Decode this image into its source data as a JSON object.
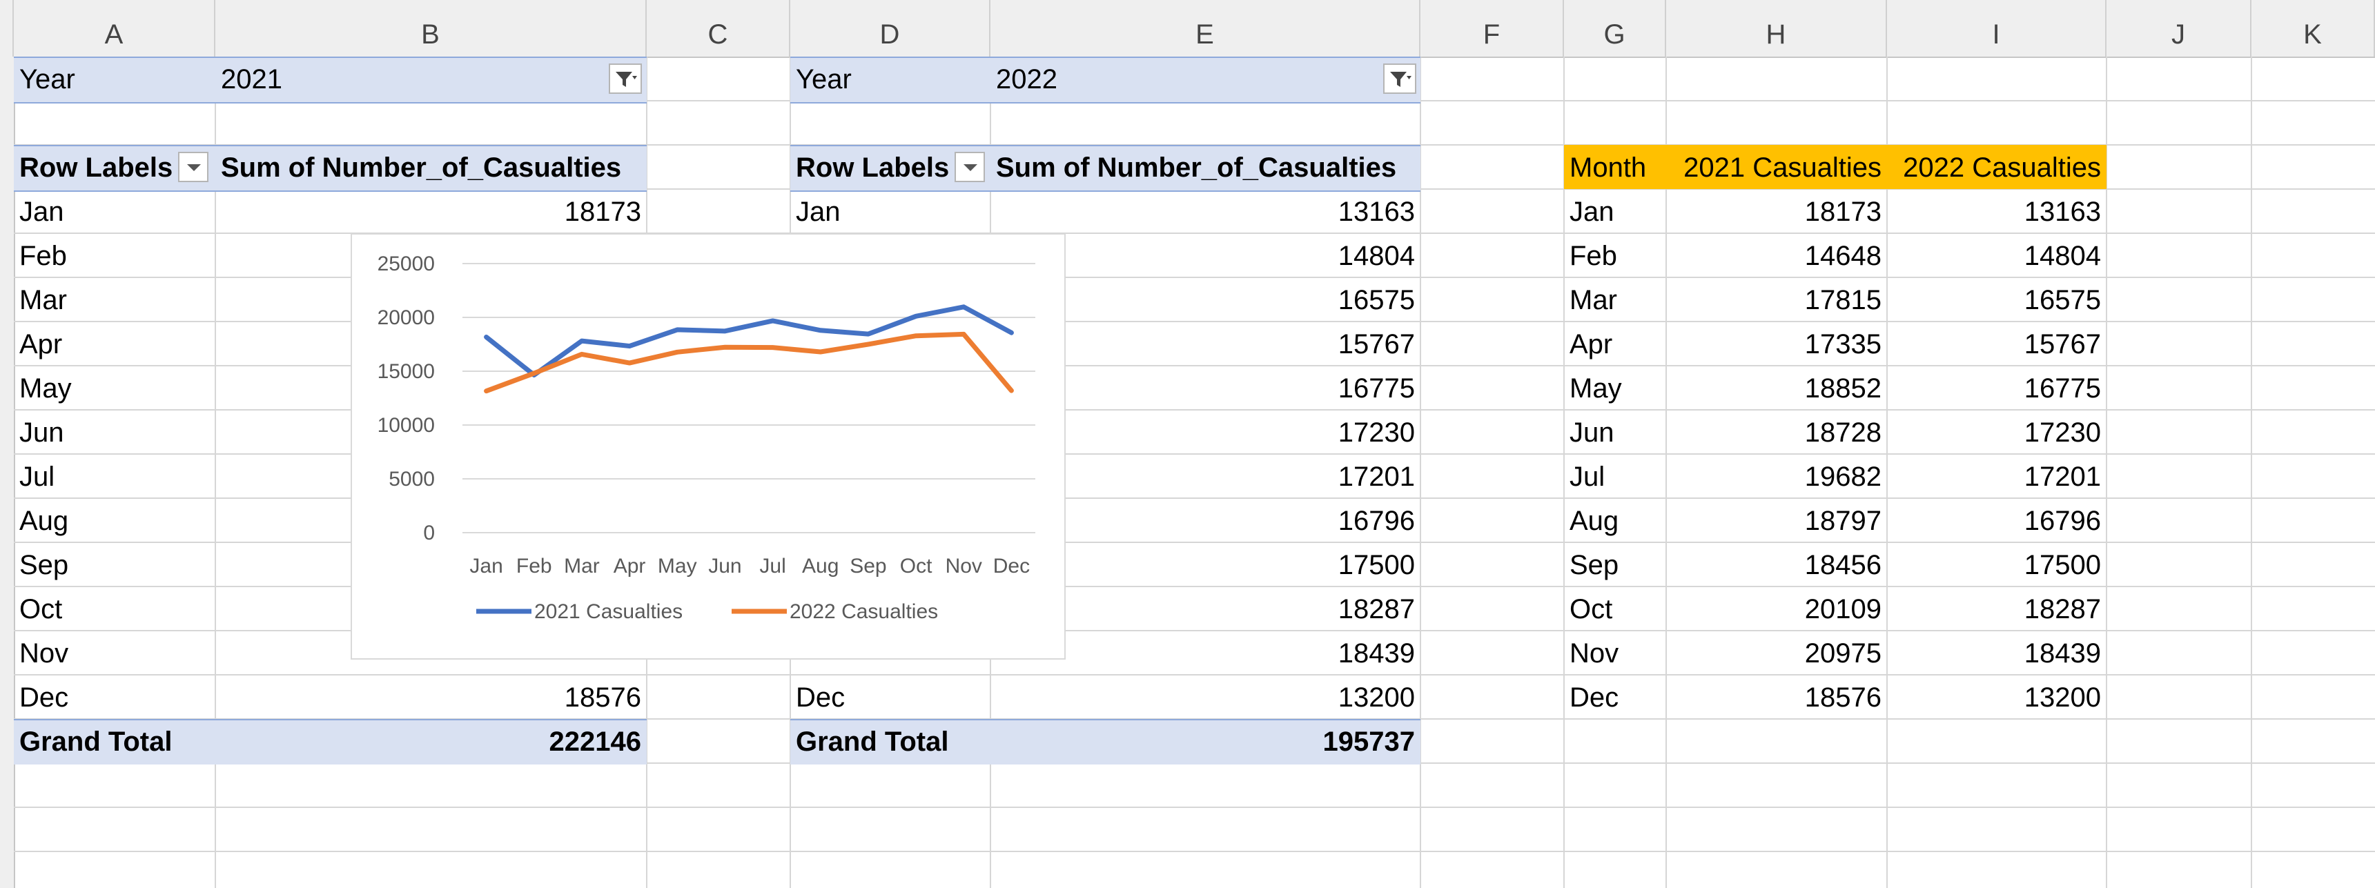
{
  "columns": [
    "A",
    "B",
    "C",
    "D",
    "E",
    "F",
    "G",
    "H",
    "I",
    "J",
    "K"
  ],
  "pivot2021": {
    "filter_label": "Year",
    "filter_value": "2021",
    "row_labels_header": "Row Labels",
    "value_header": "Sum of Number_of_Casualties",
    "rows": [
      {
        "label": "Jan",
        "value": "18173"
      },
      {
        "label": "Feb",
        "value": ""
      },
      {
        "label": "Mar",
        "value": ""
      },
      {
        "label": "Apr",
        "value": ""
      },
      {
        "label": "May",
        "value": ""
      },
      {
        "label": "Jun",
        "value": ""
      },
      {
        "label": "Jul",
        "value": ""
      },
      {
        "label": "Aug",
        "value": ""
      },
      {
        "label": "Sep",
        "value": ""
      },
      {
        "label": "Oct",
        "value": ""
      },
      {
        "label": "Nov",
        "value": ""
      },
      {
        "label": "Dec",
        "value": "18576"
      }
    ],
    "grand_total_label": "Grand Total",
    "grand_total_value": "222146"
  },
  "pivot2022": {
    "filter_label": "Year",
    "filter_value": "2022",
    "row_labels_header": "Row Labels",
    "value_header": "Sum of Number_of_Casualties",
    "rows": [
      {
        "label": "Jan",
        "value": "13163"
      },
      {
        "label": "",
        "value": "14804"
      },
      {
        "label": "",
        "value": "16575"
      },
      {
        "label": "",
        "value": "15767"
      },
      {
        "label": "",
        "value": "16775"
      },
      {
        "label": "",
        "value": "17230"
      },
      {
        "label": "",
        "value": "17201"
      },
      {
        "label": "",
        "value": "16796"
      },
      {
        "label": "",
        "value": "17500"
      },
      {
        "label": "",
        "value": "18287"
      },
      {
        "label": "",
        "value": "18439"
      },
      {
        "label": "Dec",
        "value": "13200"
      }
    ],
    "grand_total_label": "Grand Total",
    "grand_total_value": "195737"
  },
  "comparison_table": {
    "headers": [
      "Month",
      "2021 Casualties",
      "2022 Casualties"
    ],
    "header_color": "#ffc000",
    "rows": [
      [
        "Jan",
        "18173",
        "13163"
      ],
      [
        "Feb",
        "14648",
        "14804"
      ],
      [
        "Mar",
        "17815",
        "16575"
      ],
      [
        "Apr",
        "17335",
        "15767"
      ],
      [
        "May",
        "18852",
        "16775"
      ],
      [
        "Jun",
        "18728",
        "17230"
      ],
      [
        "Jul",
        "19682",
        "17201"
      ],
      [
        "Aug",
        "18797",
        "16796"
      ],
      [
        "Sep",
        "18456",
        "17500"
      ],
      [
        "Oct",
        "20109",
        "18287"
      ],
      [
        "Nov",
        "20975",
        "18439"
      ],
      [
        "Dec",
        "18576",
        "13200"
      ]
    ]
  },
  "chart_data": {
    "type": "line",
    "title": "",
    "xlabel": "",
    "ylabel": "",
    "ylim": [
      0,
      25000
    ],
    "yticks": [
      0,
      5000,
      10000,
      15000,
      20000,
      25000
    ],
    "grid": true,
    "legend": "bottom",
    "categories": [
      "Jan",
      "Feb",
      "Mar",
      "Apr",
      "May",
      "Jun",
      "Jul",
      "Aug",
      "Sep",
      "Oct",
      "Nov",
      "Dec"
    ],
    "series": [
      {
        "name": "2021 Casualties",
        "color": "#4472c4",
        "values": [
          18173,
          14648,
          17815,
          17335,
          18852,
          18728,
          19682,
          18797,
          18456,
          20109,
          20975,
          18576
        ]
      },
      {
        "name": "2022 Casualties",
        "color": "#ed7d31",
        "values": [
          13163,
          14804,
          16575,
          15767,
          16775,
          17230,
          17201,
          16796,
          17500,
          18287,
          18439,
          13200
        ]
      }
    ]
  },
  "icons": {
    "filter": "filter-funnel-icon",
    "dropdown": "dropdown-arrow-icon"
  }
}
